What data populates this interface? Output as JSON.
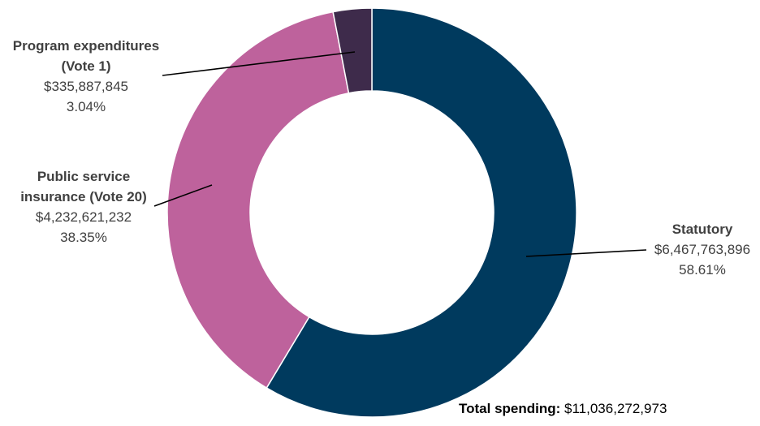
{
  "chart_data": {
    "type": "pie",
    "donut": true,
    "start": "top",
    "direction": "clockwise",
    "slices": [
      {
        "name": "Statutory",
        "value": 6467763896,
        "value_label": "$6,467,763,896",
        "percent_label": "58.61%",
        "percent": 58.61,
        "color": "#003A5E"
      },
      {
        "name": "Public service insurance (Vote 20)",
        "value": 4232621232,
        "value_label": "$4,232,621,232",
        "percent_label": "38.35%",
        "percent": 38.35,
        "color": "#BE629C"
      },
      {
        "name": "Program expenditures (Vote 1)",
        "value": 335887845,
        "value_label": "$335,887,845",
        "percent_label": "3.04%",
        "percent": 3.04,
        "color": "#3E2B4B"
      }
    ],
    "total": {
      "label": "Total spending:",
      "value": "$11,036,272,973"
    }
  }
}
